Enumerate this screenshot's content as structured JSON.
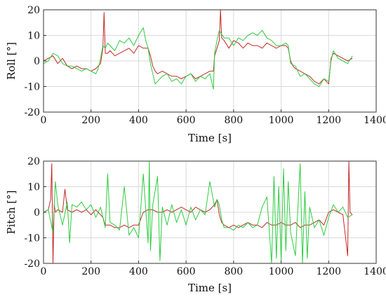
{
  "chart_data": [
    {
      "type": "line",
      "title": "",
      "xlabel": "Time [s]",
      "ylabel": "Roll [°]",
      "xlim": [
        0,
        1400
      ],
      "ylim": [
        -20,
        20
      ],
      "xticks": [
        0,
        200,
        400,
        600,
        800,
        1000,
        1200,
        1400
      ],
      "yticks": [
        -20,
        -10,
        0,
        10,
        20
      ],
      "grid": true,
      "series": [
        {
          "color": "#c62828",
          "x": [
            0,
            20,
            40,
            60,
            80,
            100,
            120,
            140,
            160,
            180,
            200,
            220,
            230,
            240,
            250,
            255,
            260,
            270,
            280,
            300,
            320,
            340,
            360,
            380,
            400,
            420,
            440,
            450,
            460,
            470,
            480,
            500,
            520,
            540,
            560,
            580,
            600,
            620,
            640,
            660,
            680,
            700,
            715,
            720,
            730,
            740,
            745,
            750,
            760,
            780,
            800,
            820,
            840,
            860,
            880,
            900,
            920,
            940,
            960,
            980,
            1000,
            1020,
            1030,
            1040,
            1050,
            1060,
            1080,
            1100,
            1120,
            1140,
            1160,
            1180,
            1190,
            1200,
            1210,
            1220,
            1240,
            1260,
            1280,
            1300
          ],
          "y": [
            0,
            1,
            2,
            -1,
            1,
            -2,
            -3,
            -2,
            -3,
            -3,
            -4,
            -3,
            -2,
            -1,
            5,
            19,
            3,
            3,
            4,
            2,
            3,
            4,
            5,
            3,
            6,
            5,
            5,
            2,
            -2,
            -4,
            -5,
            -4,
            -5,
            -6,
            -6,
            -7,
            -6,
            -5,
            -7,
            -6,
            -5,
            -4,
            -4,
            2,
            5,
            8,
            20,
            9,
            8,
            5,
            8,
            7,
            5,
            7,
            6,
            6,
            5,
            7,
            6,
            5,
            6,
            6,
            5,
            0,
            -2,
            -3,
            -4,
            -5,
            -6,
            -8,
            -9,
            -7,
            -8,
            -9,
            1,
            3,
            2,
            1,
            0,
            1
          ]
        },
        {
          "color": "#2ecc40",
          "x": [
            0,
            20,
            40,
            60,
            80,
            100,
            120,
            140,
            160,
            180,
            200,
            220,
            230,
            240,
            250,
            260,
            270,
            280,
            300,
            320,
            340,
            360,
            380,
            400,
            420,
            430,
            440,
            450,
            460,
            470,
            480,
            500,
            520,
            540,
            560,
            580,
            600,
            620,
            640,
            660,
            680,
            700,
            715,
            720,
            730,
            740,
            760,
            780,
            800,
            820,
            840,
            860,
            880,
            900,
            920,
            940,
            960,
            980,
            1000,
            1020,
            1030,
            1040,
            1060,
            1080,
            1100,
            1120,
            1140,
            1160,
            1180,
            1200,
            1210,
            1220,
            1240,
            1260,
            1280,
            1300
          ],
          "y": [
            -1,
            0,
            3,
            2,
            -1,
            -2,
            -2,
            -3,
            -4,
            -3,
            -4,
            -5,
            -3,
            1,
            6,
            5,
            7,
            6,
            4,
            8,
            7,
            9,
            6,
            10,
            13,
            8,
            5,
            -1,
            -5,
            -9,
            -8,
            -6,
            -5,
            -8,
            -7,
            -9,
            -6,
            -5,
            -8,
            -6,
            -7,
            -5,
            -11,
            3,
            8,
            12,
            9,
            9,
            6,
            9,
            8,
            10,
            11,
            10,
            12,
            9,
            8,
            6,
            6,
            7,
            6,
            -1,
            -2,
            -6,
            -5,
            -7,
            -9,
            -10,
            -7,
            -8,
            0,
            4,
            1,
            0,
            -1,
            2
          ]
        }
      ]
    },
    {
      "type": "line",
      "title": "",
      "xlabel": "Time [s]",
      "ylabel": "Pitch [°]",
      "xlim": [
        0,
        1400
      ],
      "ylim": [
        -20,
        20
      ],
      "xticks": [
        0,
        200,
        400,
        600,
        800,
        1000,
        1200,
        1400
      ],
      "yticks": [
        -20,
        -10,
        0,
        10,
        20
      ],
      "grid": true,
      "series": [
        {
          "color": "#c62828",
          "x": [
            0,
            20,
            30,
            35,
            40,
            45,
            50,
            60,
            80,
            90,
            100,
            120,
            140,
            160,
            180,
            200,
            220,
            240,
            250,
            260,
            280,
            300,
            320,
            340,
            360,
            380,
            400,
            420,
            440,
            460,
            480,
            500,
            520,
            540,
            560,
            580,
            600,
            620,
            640,
            660,
            680,
            700,
            720,
            730,
            740,
            750,
            760,
            780,
            800,
            820,
            840,
            860,
            880,
            900,
            920,
            940,
            960,
            980,
            1000,
            1020,
            1040,
            1060,
            1080,
            1100,
            1120,
            1140,
            1160,
            1180,
            1200,
            1220,
            1240,
            1260,
            1280,
            1285,
            1290,
            1300
          ],
          "y": [
            0,
            1,
            5,
            19,
            -20,
            3,
            0,
            1,
            0,
            9,
            1,
            0,
            1,
            0,
            1,
            -1,
            1,
            -1,
            -2,
            -5,
            -5,
            -6,
            -6,
            -5,
            -6,
            -5,
            -5,
            0,
            1,
            1,
            0,
            0,
            1,
            0,
            1,
            2,
            1,
            0,
            2,
            1,
            0,
            1,
            3,
            5,
            -1,
            -4,
            -5,
            -6,
            -5,
            -6,
            -5,
            -4,
            -5,
            -5,
            -6,
            -4,
            -5,
            -5,
            -4,
            -5,
            -5,
            -4,
            -6,
            -5,
            -5,
            -4,
            -3,
            -5,
            0,
            1,
            0,
            -1,
            -17,
            20,
            0,
            -1
          ]
        },
        {
          "color": "#2ecc40",
          "x": [
            0,
            20,
            40,
            50,
            60,
            80,
            100,
            110,
            120,
            140,
            160,
            180,
            200,
            220,
            240,
            260,
            270,
            280,
            300,
            320,
            340,
            360,
            380,
            400,
            420,
            440,
            445,
            450,
            460,
            480,
            490,
            500,
            520,
            540,
            560,
            580,
            600,
            620,
            640,
            660,
            680,
            700,
            720,
            730,
            740,
            750,
            760,
            780,
            800,
            820,
            840,
            860,
            880,
            900,
            920,
            940,
            960,
            970,
            980,
            990,
            1000,
            1010,
            1020,
            1030,
            1040,
            1060,
            1080,
            1090,
            1100,
            1110,
            1120,
            1140,
            1160,
            1180,
            1200,
            1220,
            1240,
            1260,
            1280,
            1300
          ],
          "y": [
            0,
            1,
            -8,
            12,
            3,
            -5,
            4,
            -12,
            3,
            2,
            4,
            1,
            3,
            -2,
            2,
            -6,
            15,
            -4,
            -5,
            -7,
            10,
            -9,
            -6,
            -10,
            15,
            -12,
            20,
            -15,
            3,
            14,
            -19,
            2,
            -5,
            3,
            -4,
            1,
            -5,
            2,
            -3,
            1,
            -1,
            12,
            2,
            5,
            3,
            -3,
            -6,
            -6,
            -7,
            -5,
            -6,
            -4,
            -6,
            -5,
            2,
            6,
            -20,
            14,
            -18,
            10,
            -19,
            17,
            -15,
            12,
            -8,
            -17,
            19,
            -20,
            8,
            -18,
            2,
            -6,
            -3,
            -9,
            -2,
            3,
            0,
            2,
            -2,
            -1
          ]
        }
      ]
    }
  ]
}
